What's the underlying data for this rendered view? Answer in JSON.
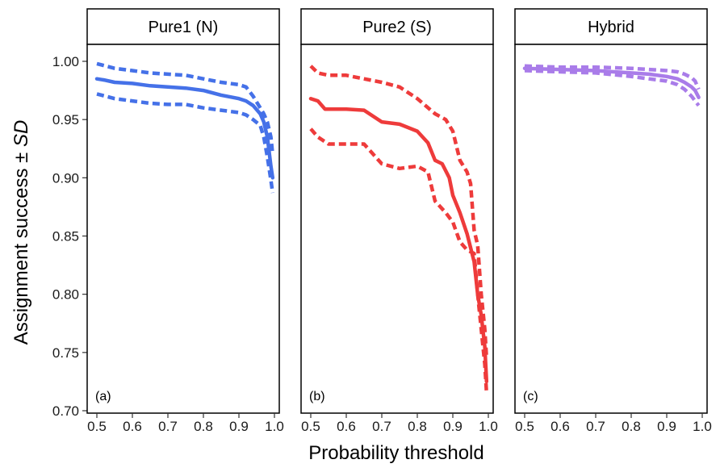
{
  "chart_data": {
    "type": "line",
    "xlabel": "Probability threshold",
    "ylabel_main": "Assignment success ± ",
    "ylabel_italic": "SD",
    "ylim": [
      0.7,
      1.0
    ],
    "xlim": [
      0.5,
      1.0
    ],
    "yticks": [
      "0.70",
      "0.75",
      "0.80",
      "0.85",
      "0.90",
      "0.95",
      "1.00"
    ],
    "xticks": [
      "0.5",
      "0.6",
      "0.7",
      "0.8",
      "0.9",
      "1.0"
    ],
    "panels": [
      {
        "strip": "Pure1 (N)",
        "tag": "(a)",
        "color": "#4571e8",
        "mean": [
          [
            0.5,
            0.985
          ],
          [
            0.52,
            0.984
          ],
          [
            0.55,
            0.982
          ],
          [
            0.6,
            0.981
          ],
          [
            0.65,
            0.979
          ],
          [
            0.7,
            0.978
          ],
          [
            0.75,
            0.977
          ],
          [
            0.8,
            0.975
          ],
          [
            0.85,
            0.971
          ],
          [
            0.9,
            0.968
          ],
          [
            0.92,
            0.966
          ],
          [
            0.94,
            0.962
          ],
          [
            0.96,
            0.955
          ],
          [
            0.97,
            0.948
          ],
          [
            0.98,
            0.935
          ],
          [
            0.99,
            0.91
          ],
          [
            0.995,
            0.9
          ]
        ],
        "upper": [
          [
            0.5,
            0.998
          ],
          [
            0.55,
            0.994
          ],
          [
            0.6,
            0.992
          ],
          [
            0.65,
            0.99
          ],
          [
            0.7,
            0.989
          ],
          [
            0.75,
            0.988
          ],
          [
            0.8,
            0.985
          ],
          [
            0.85,
            0.982
          ],
          [
            0.9,
            0.98
          ],
          [
            0.92,
            0.978
          ],
          [
            0.94,
            0.97
          ],
          [
            0.96,
            0.96
          ],
          [
            0.97,
            0.955
          ],
          [
            0.98,
            0.948
          ],
          [
            0.99,
            0.935
          ],
          [
            0.995,
            0.92
          ]
        ],
        "lower": [
          [
            0.5,
            0.972
          ],
          [
            0.55,
            0.968
          ],
          [
            0.6,
            0.966
          ],
          [
            0.65,
            0.964
          ],
          [
            0.7,
            0.963
          ],
          [
            0.75,
            0.963
          ],
          [
            0.8,
            0.96
          ],
          [
            0.85,
            0.958
          ],
          [
            0.9,
            0.956
          ],
          [
            0.92,
            0.954
          ],
          [
            0.94,
            0.95
          ],
          [
            0.96,
            0.945
          ],
          [
            0.97,
            0.935
          ],
          [
            0.98,
            0.918
          ],
          [
            0.99,
            0.898
          ],
          [
            0.995,
            0.887
          ]
        ]
      },
      {
        "strip": "Pure2 (S)",
        "tag": "(b)",
        "color": "#ee3b3b",
        "mean": [
          [
            0.5,
            0.968
          ],
          [
            0.52,
            0.966
          ],
          [
            0.54,
            0.959
          ],
          [
            0.6,
            0.959
          ],
          [
            0.65,
            0.958
          ],
          [
            0.7,
            0.948
          ],
          [
            0.75,
            0.946
          ],
          [
            0.8,
            0.94
          ],
          [
            0.83,
            0.93
          ],
          [
            0.85,
            0.915
          ],
          [
            0.87,
            0.912
          ],
          [
            0.89,
            0.9
          ],
          [
            0.9,
            0.885
          ],
          [
            0.92,
            0.87
          ],
          [
            0.94,
            0.852
          ],
          [
            0.96,
            0.828
          ],
          [
            0.97,
            0.8
          ],
          [
            0.98,
            0.782
          ],
          [
            0.99,
            0.755
          ],
          [
            0.995,
            0.725
          ]
        ],
        "upper": [
          [
            0.5,
            0.996
          ],
          [
            0.52,
            0.99
          ],
          [
            0.55,
            0.988
          ],
          [
            0.6,
            0.988
          ],
          [
            0.65,
            0.985
          ],
          [
            0.7,
            0.982
          ],
          [
            0.75,
            0.978
          ],
          [
            0.8,
            0.968
          ],
          [
            0.85,
            0.955
          ],
          [
            0.88,
            0.95
          ],
          [
            0.9,
            0.94
          ],
          [
            0.92,
            0.915
          ],
          [
            0.94,
            0.905
          ],
          [
            0.95,
            0.895
          ],
          [
            0.96,
            0.855
          ],
          [
            0.97,
            0.842
          ],
          [
            0.98,
            0.8
          ],
          [
            0.99,
            0.77
          ],
          [
            0.995,
            0.745
          ]
        ],
        "lower": [
          [
            0.5,
            0.942
          ],
          [
            0.52,
            0.935
          ],
          [
            0.55,
            0.929
          ],
          [
            0.6,
            0.929
          ],
          [
            0.65,
            0.929
          ],
          [
            0.7,
            0.912
          ],
          [
            0.75,
            0.908
          ],
          [
            0.8,
            0.91
          ],
          [
            0.83,
            0.905
          ],
          [
            0.85,
            0.88
          ],
          [
            0.88,
            0.87
          ],
          [
            0.9,
            0.862
          ],
          [
            0.92,
            0.845
          ],
          [
            0.94,
            0.838
          ],
          [
            0.96,
            0.835
          ],
          [
            0.97,
            0.8
          ],
          [
            0.98,
            0.77
          ],
          [
            0.99,
            0.74
          ],
          [
            0.995,
            0.715
          ]
        ]
      },
      {
        "strip": "Hybrid",
        "tag": "(c)",
        "color": "#a97ce9",
        "mean": [
          [
            0.5,
            0.994
          ],
          [
            0.6,
            0.993
          ],
          [
            0.7,
            0.992
          ],
          [
            0.75,
            0.991
          ],
          [
            0.8,
            0.99
          ],
          [
            0.85,
            0.989
          ],
          [
            0.9,
            0.987
          ],
          [
            0.93,
            0.985
          ],
          [
            0.95,
            0.982
          ],
          [
            0.97,
            0.978
          ],
          [
            0.98,
            0.975
          ],
          [
            0.99,
            0.969
          ]
        ],
        "upper": [
          [
            0.5,
            0.996
          ],
          [
            0.6,
            0.995
          ],
          [
            0.7,
            0.995
          ],
          [
            0.8,
            0.994
          ],
          [
            0.85,
            0.993
          ],
          [
            0.9,
            0.992
          ],
          [
            0.93,
            0.991
          ],
          [
            0.95,
            0.989
          ],
          [
            0.97,
            0.986
          ],
          [
            0.98,
            0.983
          ],
          [
            0.99,
            0.976
          ]
        ],
        "lower": [
          [
            0.5,
            0.992
          ],
          [
            0.6,
            0.991
          ],
          [
            0.7,
            0.99
          ],
          [
            0.8,
            0.987
          ],
          [
            0.85,
            0.985
          ],
          [
            0.9,
            0.983
          ],
          [
            0.93,
            0.98
          ],
          [
            0.95,
            0.976
          ],
          [
            0.97,
            0.97
          ],
          [
            0.98,
            0.966
          ],
          [
            0.99,
            0.962
          ]
        ]
      }
    ],
    "grid": false,
    "legend": "none"
  }
}
